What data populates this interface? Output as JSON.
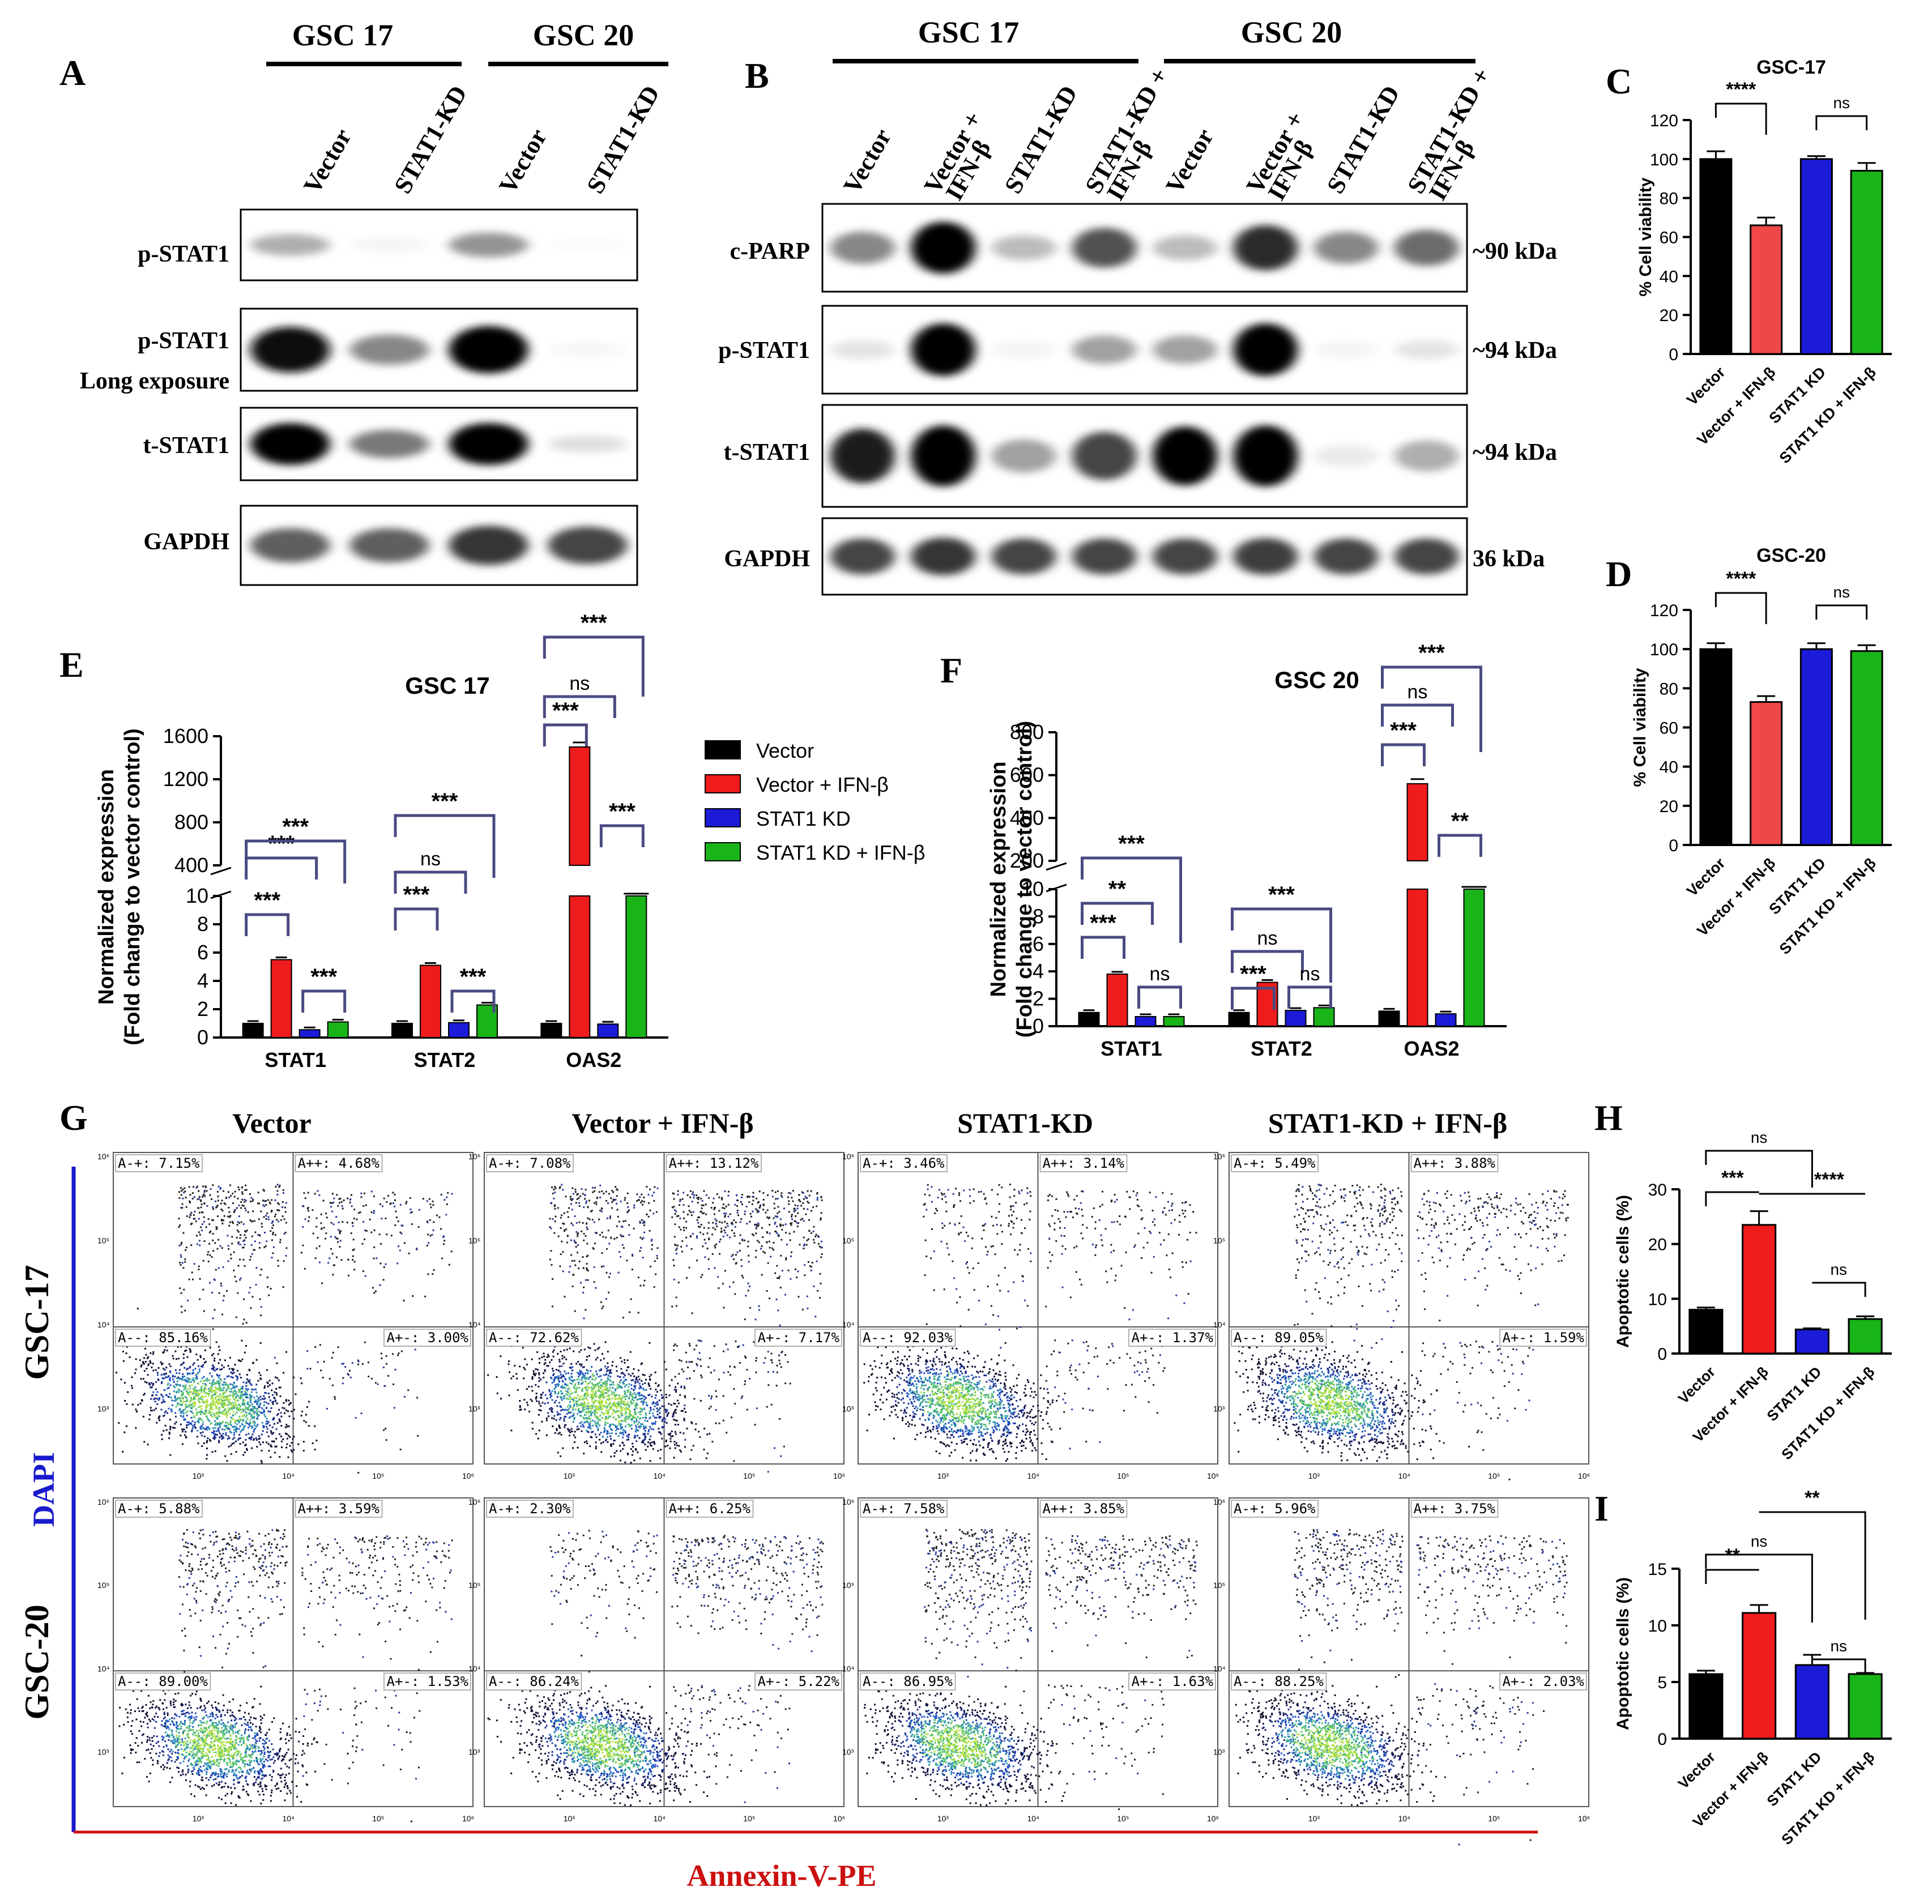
{
  "panel_labels": {
    "A": "A",
    "B": "B",
    "C": "C",
    "D": "D",
    "E": "E",
    "F": "F",
    "G": "G",
    "H": "H",
    "I": "I"
  },
  "blot_a": {
    "groups": [
      "GSC 17",
      "GSC 20"
    ],
    "lanes": [
      "Vector",
      "STAT1-KD",
      "Vector",
      "STAT1-KD"
    ],
    "rows": [
      "p-STAT1",
      "p-STAT1",
      "t-STAT1",
      "GAPDH"
    ],
    "row_sub": "Long exposure",
    "intensity": [
      [
        0.3,
        0.04,
        0.4,
        0.02
      ],
      [
        0.9,
        0.45,
        0.95,
        0.03
      ],
      [
        0.95,
        0.5,
        0.95,
        0.12
      ],
      [
        0.6,
        0.6,
        0.75,
        0.7
      ]
    ]
  },
  "blot_b": {
    "groups": [
      "GSC 17",
      "GSC 20"
    ],
    "lanes": [
      [
        "Vector"
      ],
      [
        "Vector +",
        "IFN-β"
      ],
      [
        "STAT1-KD"
      ],
      [
        "STAT1-KD +",
        "IFN-β"
      ],
      [
        "Vector"
      ],
      [
        "Vector +",
        "IFN-β"
      ],
      [
        "STAT1-KD"
      ],
      [
        "STAT1-KD +",
        "IFN-β"
      ]
    ],
    "rows": [
      "c-PARP",
      "p-STAT1",
      "t-STAT1",
      "GAPDH"
    ],
    "sizes": [
      "~90 kDa",
      "~94 kDa",
      "~94 kDa",
      "36 kDa"
    ],
    "intensity": [
      [
        0.45,
        0.98,
        0.25,
        0.65,
        0.25,
        0.8,
        0.45,
        0.55
      ],
      [
        0.1,
        1.0,
        0.04,
        0.35,
        0.35,
        1.0,
        0.04,
        0.1
      ],
      [
        0.85,
        1.0,
        0.35,
        0.7,
        0.95,
        1.0,
        0.08,
        0.3
      ],
      [
        0.7,
        0.75,
        0.7,
        0.7,
        0.7,
        0.72,
        0.7,
        0.7
      ]
    ]
  },
  "viability": {
    "ylabel": "% Cell viability",
    "categories": [
      "Vector",
      "Vector + IFN-β",
      "STAT1 KD",
      "STAT1 KD + IFN-β"
    ],
    "colors": [
      "#000000",
      "#f04848",
      "#1b1bd8",
      "#18b418"
    ],
    "ticks": [
      "0",
      "20",
      "40",
      "60",
      "80",
      "100",
      "120"
    ],
    "sig": [
      "****",
      "ns"
    ]
  },
  "qpcr": {
    "ylabel": [
      "Normalized expression",
      "(Fold change to vector control)"
    ],
    "genes": [
      "STAT1",
      "STAT2",
      "OAS2"
    ],
    "legend": [
      "Vector",
      "Vector + IFN-β",
      "STAT1 KD",
      "STAT1 KD + IFN-β"
    ],
    "colors": [
      "#000000",
      "#ee1c1c",
      "#1b1bd8",
      "#18b418"
    ],
    "e_low_ticks": [
      "0",
      "2",
      "4",
      "6",
      "8",
      "10"
    ],
    "e_high_ticks": [
      "400",
      "800",
      "1200",
      "1600"
    ],
    "f_low_ticks": [
      "0",
      "2",
      "4",
      "6",
      "8",
      "10"
    ],
    "f_high_ticks": [
      "200",
      "400",
      "600",
      "800"
    ]
  },
  "flow": {
    "columns": [
      "Vector",
      "Vector + IFN-β",
      "STAT1-KD",
      "STAT1-KD + IFN-β"
    ],
    "rows": [
      "GSC-17",
      "GSC-20"
    ],
    "ylabel": "DAPI",
    "xlabel": "Annexin-V-PE",
    "quadrants": [
      [
        [
          "A-+: 7.15%",
          "A++: 4.68%",
          "A--: 85.16%",
          "A+-: 3.00%"
        ],
        [
          "A-+: 7.08%",
          "A++: 13.12%",
          "A--: 72.62%",
          "A+-: 7.17%"
        ],
        [
          "A-+: 3.46%",
          "A++: 3.14%",
          "A--: 92.03%",
          "A+-: 1.37%"
        ],
        [
          "A-+: 5.49%",
          "A++: 3.88%",
          "A--: 89.05%",
          "A+-: 1.59%"
        ]
      ],
      [
        [
          "A-+: 5.88%",
          "A++: 3.59%",
          "A--: 89.00%",
          "A+-: 1.53%"
        ],
        [
          "A-+: 2.30%",
          "A++: 6.25%",
          "A--: 86.24%",
          "A+-: 5.22%"
        ],
        [
          "A-+: 7.58%",
          "A++: 3.85%",
          "A--: 86.95%",
          "A+-: 1.63%"
        ],
        [
          "A-+: 5.96%",
          "A++: 3.75%",
          "A--: 88.25%",
          "A+-: 2.03%"
        ]
      ]
    ]
  },
  "apoptosis": {
    "ylabel": "Apoptotic cells (%)",
    "categories": [
      "Vector",
      "Vector + IFN-β",
      "STAT1 KD",
      "STAT1 KD + IFN-β"
    ],
    "colors": [
      "#000000",
      "#ee1c1c",
      "#1b1bd8",
      "#18b418"
    ]
  },
  "chart_data": [
    {
      "type": "bar",
      "title": "GSC-17",
      "categories": [
        "Vector",
        "Vector + IFN-β",
        "STAT1 KD",
        "STAT1 KD + IFN-β"
      ],
      "values": [
        100,
        66,
        100,
        94
      ],
      "errors": [
        4,
        4,
        1.5,
        4
      ],
      "ylim": [
        0,
        120
      ],
      "yticks": [
        0,
        20,
        40,
        60,
        80,
        100,
        120
      ],
      "ylabel": "% Cell viability",
      "significance": [
        {
          "pair": [
            0,
            1
          ],
          "label": "****"
        },
        {
          "pair": [
            2,
            3
          ],
          "label": "ns"
        }
      ]
    },
    {
      "type": "bar",
      "title": "GSC-20",
      "categories": [
        "Vector",
        "Vector + IFN-β",
        "STAT1 KD",
        "STAT1 KD + IFN-β"
      ],
      "values": [
        100,
        73,
        100,
        99
      ],
      "errors": [
        3,
        3,
        3,
        3
      ],
      "ylim": [
        0,
        120
      ],
      "yticks": [
        0,
        20,
        40,
        60,
        80,
        100,
        120
      ],
      "ylabel": "% Cell viability",
      "significance": [
        {
          "pair": [
            0,
            1
          ],
          "label": "****"
        },
        {
          "pair": [
            2,
            3
          ],
          "label": "ns"
        }
      ]
    },
    {
      "type": "bar",
      "title": "GSC 17",
      "categories": [
        "STAT1",
        "STAT2",
        "OAS2"
      ],
      "series": [
        {
          "name": "Vector",
          "values": [
            1,
            1,
            1
          ]
        },
        {
          "name": "Vector + IFN-β",
          "values": [
            5.5,
            5.1,
            1500
          ]
        },
        {
          "name": "STAT1 KD",
          "values": [
            0.55,
            1.05,
            0.95
          ]
        },
        {
          "name": "STAT1 KD + IFN-β",
          "values": [
            1.1,
            2.3,
            340
          ]
        }
      ],
      "yticks_low": [
        0,
        2,
        4,
        6,
        8,
        10
      ],
      "yticks_high": [
        400,
        800,
        1200,
        1600
      ],
      "ylabel": "Normalized expression (Fold change to vector control)",
      "significance": [
        [
          "***",
          "***",
          "***",
          "***"
        ],
        [
          "***",
          "ns",
          "***",
          "***"
        ],
        [
          "***",
          "ns",
          "***",
          "***"
        ]
      ]
    },
    {
      "type": "bar",
      "title": "GSC 20",
      "categories": [
        "STAT1",
        "STAT2",
        "OAS2"
      ],
      "series": [
        {
          "name": "Vector",
          "values": [
            1,
            1,
            1.1
          ]
        },
        {
          "name": "Vector + IFN-β",
          "values": [
            3.8,
            3.2,
            560
          ]
        },
        {
          "name": "STAT1 KD",
          "values": [
            0.7,
            1.15,
            0.9
          ]
        },
        {
          "name": "STAT1 KD + IFN-β",
          "values": [
            0.7,
            1.35,
            150
          ]
        }
      ],
      "yticks_low": [
        0,
        2,
        4,
        6,
        8,
        10
      ],
      "yticks_high": [
        200,
        400,
        600,
        800
      ],
      "ylabel": "Normalized expression (Fold change to vector control)",
      "significance": [
        [
          "***",
          "**",
          "***",
          "ns"
        ],
        [
          "***",
          "ns",
          "***",
          "ns"
        ],
        [
          "***",
          "ns",
          "***",
          "**"
        ]
      ]
    },
    {
      "type": "bar",
      "categories": [
        "Vector",
        "Vector + IFN-β",
        "STAT1 KD",
        "STAT1 KD + IFN-β"
      ],
      "values": [
        8,
        23.5,
        4.4,
        6.3
      ],
      "errors": [
        0.4,
        2.5,
        0.2,
        0.5
      ],
      "ylim": [
        0,
        30
      ],
      "yticks": [
        0,
        10,
        20,
        30
      ],
      "ylabel": "Apoptotic cells (%)",
      "significance": [
        {
          "pair": [
            0,
            1
          ],
          "label": "***"
        },
        {
          "pair": [
            1,
            3
          ],
          "label": "****"
        },
        {
          "pair": [
            0,
            2
          ],
          "label": "ns"
        },
        {
          "pair": [
            2,
            3
          ],
          "label": "ns"
        }
      ]
    },
    {
      "type": "bar",
      "categories": [
        "Vector",
        "Vector + IFN-β",
        "STAT1 KD",
        "STAT1 KD + IFN-β"
      ],
      "values": [
        5.7,
        11.1,
        6.5,
        5.7
      ],
      "errors": [
        0.3,
        0.7,
        0.9,
        0.1
      ],
      "ylim": [
        0,
        15
      ],
      "yticks": [
        0,
        5,
        10,
        15
      ],
      "ylabel": "Apoptotic cells (%)",
      "significance": [
        {
          "pair": [
            0,
            1
          ],
          "label": "**"
        },
        {
          "pair": [
            0,
            2
          ],
          "label": "ns"
        },
        {
          "pair": [
            1,
            3
          ],
          "label": "**"
        },
        {
          "pair": [
            2,
            3
          ],
          "label": "ns"
        }
      ]
    }
  ]
}
